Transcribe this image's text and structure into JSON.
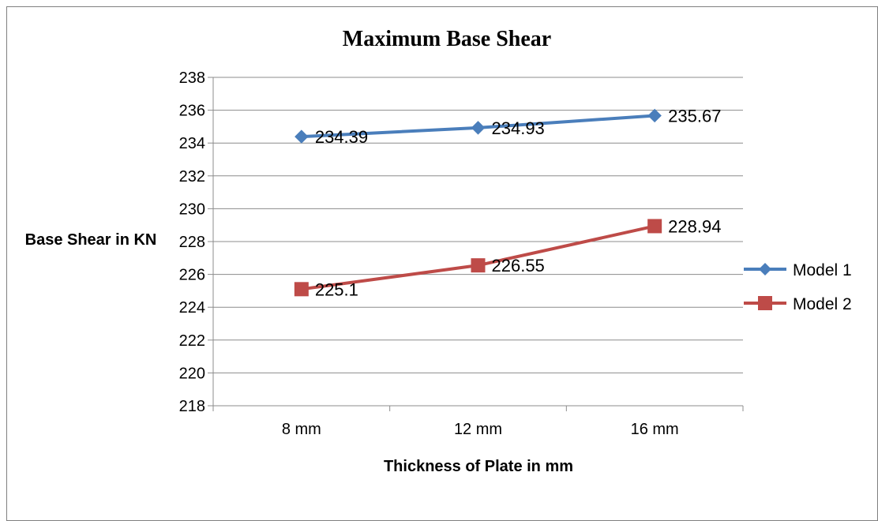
{
  "chart_data": {
    "type": "line",
    "title": "Maximum Base Shear",
    "xlabel": "Thickness of Plate in mm",
    "ylabel": "Base Shear in KN",
    "categories": [
      "8 mm",
      "12 mm",
      "16 mm"
    ],
    "ylim": [
      218,
      238
    ],
    "ytick_step": 2,
    "grid": true,
    "legend_position": "right",
    "series": [
      {
        "name": "Model 1",
        "values": [
          234.39,
          234.93,
          235.67
        ],
        "labels": [
          "234.39",
          "234.93",
          "235.67"
        ],
        "color": "#4a7ebb",
        "marker": "diamond"
      },
      {
        "name": "Model 2",
        "values": [
          225.1,
          226.55,
          228.94
        ],
        "labels": [
          "225.1",
          "226.55",
          "228.94"
        ],
        "color": "#be4b48",
        "marker": "square"
      }
    ]
  }
}
